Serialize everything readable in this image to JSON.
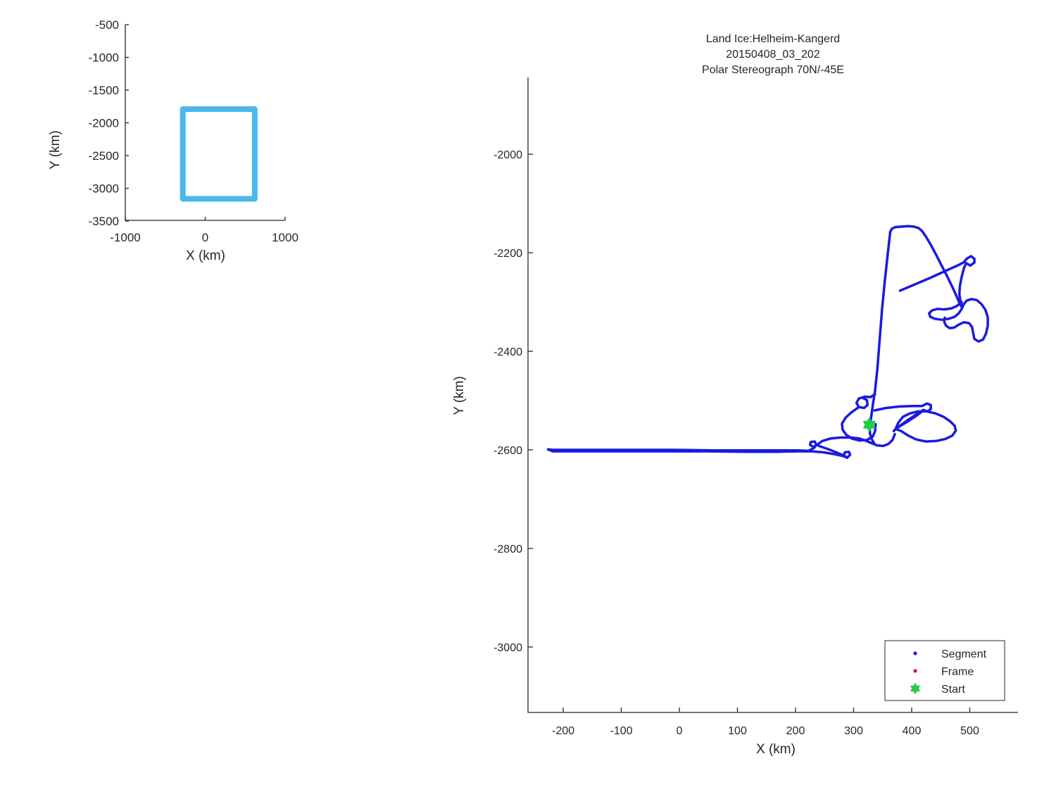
{
  "chart_data": [
    {
      "id": "overview_inset",
      "type": "line",
      "xlabel": "X (km)",
      "ylabel": "Y (km)",
      "xlim": [
        -1000,
        1000
      ],
      "ylim": [
        -3500,
        -500
      ],
      "xticks": [
        -1000,
        0,
        1000
      ],
      "yticks": [
        -500,
        -1000,
        -1500,
        -2000,
        -2500,
        -3000,
        -3500
      ],
      "grid": false,
      "series": [
        {
          "name": "coverage-box",
          "color": "#4DB8E8",
          "closed": true,
          "points": [
            [
              -280,
              -1790
            ],
            [
              620,
              -1790
            ],
            [
              620,
              -3160
            ],
            [
              -280,
              -3160
            ]
          ]
        }
      ]
    },
    {
      "id": "flight_track",
      "type": "scatter",
      "title_lines": [
        "Land Ice:Helheim-Kangerd",
        "20150408_03_202",
        "Polar Stereograph 70N/-45E"
      ],
      "xlabel": "X (km)",
      "ylabel": "Y (km)",
      "xlim": [
        -260,
        583
      ],
      "ylim": [
        -3134,
        -1844
      ],
      "xticks": [
        -200,
        -100,
        0,
        100,
        200,
        300,
        400,
        500
      ],
      "yticks": [
        -2000,
        -2200,
        -2400,
        -2600,
        -2800,
        -3000
      ],
      "grid": false,
      "track_color": "#1A1AE0",
      "axis_color": "#262626",
      "legend": {
        "position": "southeast",
        "entries": [
          {
            "label": "Segment",
            "marker": "dot",
            "color": "#1A1AE0"
          },
          {
            "label": "Frame",
            "marker": "dot",
            "color": "#E01020"
          },
          {
            "label": "Start",
            "marker": "star",
            "color": "#22CC44"
          }
        ]
      },
      "start_point": [
        327,
        -2549
      ],
      "segments": [
        [
          [
            -226,
            -2599
          ],
          [
            -218,
            -2600
          ],
          [
            -150,
            -2600
          ],
          [
            -80,
            -2600
          ],
          [
            -10,
            -2600
          ],
          [
            60,
            -2601
          ],
          [
            120,
            -2601
          ],
          [
            170,
            -2601
          ],
          [
            205,
            -2601
          ],
          [
            222,
            -2602
          ],
          [
            232,
            -2596
          ],
          [
            236,
            -2590
          ],
          [
            233,
            -2583
          ],
          [
            226,
            -2584
          ],
          [
            225,
            -2590
          ],
          [
            231,
            -2594
          ],
          [
            237,
            -2590
          ],
          [
            246,
            -2582
          ],
          [
            260,
            -2577
          ],
          [
            278,
            -2575
          ],
          [
            295,
            -2575
          ],
          [
            310,
            -2577
          ],
          [
            322,
            -2582
          ],
          [
            332,
            -2587
          ],
          [
            341,
            -2591
          ],
          [
            351,
            -2592
          ],
          [
            360,
            -2588
          ],
          [
            367,
            -2580
          ],
          [
            371,
            -2568
          ]
        ],
        [
          [
            -226,
            -2599
          ],
          [
            -218,
            -2603
          ],
          [
            -160,
            -2603
          ],
          [
            -90,
            -2603
          ],
          [
            -20,
            -2603
          ],
          [
            50,
            -2603
          ],
          [
            115,
            -2604
          ],
          [
            165,
            -2604
          ],
          [
            205,
            -2603
          ],
          [
            228,
            -2603
          ],
          [
            248,
            -2605
          ],
          [
            268,
            -2609
          ],
          [
            283,
            -2613
          ],
          [
            289,
            -2616
          ],
          [
            294,
            -2610
          ],
          [
            292,
            -2604
          ],
          [
            285,
            -2605
          ],
          [
            283,
            -2611
          ],
          [
            288,
            -2616
          ]
        ],
        [
          [
            240,
            -2592
          ],
          [
            255,
            -2598
          ],
          [
            270,
            -2605
          ],
          [
            282,
            -2611
          ],
          [
            287,
            -2614
          ]
        ],
        [
          [
            363,
            -2158
          ],
          [
            359,
            -2200
          ],
          [
            354,
            -2255
          ],
          [
            349,
            -2315
          ],
          [
            345,
            -2375
          ],
          [
            341,
            -2435
          ],
          [
            337,
            -2480
          ],
          [
            333,
            -2510
          ],
          [
            330,
            -2535
          ],
          [
            328,
            -2552
          ],
          [
            328,
            -2566
          ],
          [
            331,
            -2578
          ],
          [
            336,
            -2588
          ]
        ],
        [
          [
            363,
            -2158
          ],
          [
            366,
            -2151
          ],
          [
            372,
            -2148
          ],
          [
            382,
            -2147
          ],
          [
            394,
            -2146
          ],
          [
            404,
            -2147
          ],
          [
            412,
            -2150
          ],
          [
            418,
            -2156
          ],
          [
            425,
            -2168
          ],
          [
            433,
            -2184
          ],
          [
            442,
            -2204
          ],
          [
            452,
            -2227
          ],
          [
            462,
            -2250
          ],
          [
            471,
            -2272
          ],
          [
            478,
            -2290
          ],
          [
            483,
            -2304
          ],
          [
            486,
            -2310
          ]
        ],
        [
          [
            380,
            -2277
          ],
          [
            404,
            -2265
          ],
          [
            430,
            -2252
          ],
          [
            456,
            -2238
          ],
          [
            477,
            -2227
          ],
          [
            489,
            -2220
          ],
          [
            495,
            -2212
          ],
          [
            502,
            -2207
          ],
          [
            508,
            -2212
          ],
          [
            508,
            -2220
          ],
          [
            501,
            -2226
          ],
          [
            494,
            -2221
          ],
          [
            490,
            -2231
          ],
          [
            486,
            -2249
          ],
          [
            483,
            -2267
          ],
          [
            482,
            -2284
          ],
          [
            484,
            -2298
          ],
          [
            487,
            -2308
          ]
        ],
        [
          [
            486,
            -2300
          ],
          [
            478,
            -2308
          ],
          [
            468,
            -2313
          ],
          [
            456,
            -2315
          ],
          [
            444,
            -2314
          ],
          [
            435,
            -2317
          ],
          [
            430,
            -2323
          ],
          [
            432,
            -2330
          ],
          [
            440,
            -2334
          ],
          [
            452,
            -2336
          ],
          [
            464,
            -2334
          ],
          [
            474,
            -2330
          ],
          [
            481,
            -2323
          ],
          [
            486,
            -2314
          ],
          [
            490,
            -2304
          ],
          [
            495,
            -2297
          ],
          [
            503,
            -2294
          ],
          [
            512,
            -2296
          ],
          [
            520,
            -2304
          ],
          [
            527,
            -2316
          ],
          [
            531,
            -2331
          ],
          [
            531,
            -2348
          ],
          [
            528,
            -2364
          ],
          [
            523,
            -2376
          ],
          [
            515,
            -2380
          ],
          [
            508,
            -2375
          ],
          [
            506,
            -2364
          ],
          [
            504,
            -2351
          ],
          [
            499,
            -2343
          ],
          [
            490,
            -2341
          ],
          [
            481,
            -2346
          ],
          [
            473,
            -2352
          ],
          [
            465,
            -2353
          ],
          [
            459,
            -2348
          ],
          [
            456,
            -2340
          ],
          [
            457,
            -2332
          ]
        ],
        [
          [
            337,
            -2487
          ],
          [
            329,
            -2493
          ],
          [
            319,
            -2492
          ],
          [
            309,
            -2496
          ],
          [
            305,
            -2505
          ],
          [
            309,
            -2513
          ],
          [
            318,
            -2515
          ],
          [
            324,
            -2509
          ],
          [
            323,
            -2499
          ],
          [
            315,
            -2494
          ]
        ],
        [
          [
            307,
            -2515
          ],
          [
            296,
            -2524
          ],
          [
            286,
            -2535
          ],
          [
            280,
            -2547
          ],
          [
            281,
            -2559
          ],
          [
            287,
            -2569
          ],
          [
            297,
            -2577
          ],
          [
            310,
            -2581
          ],
          [
            323,
            -2580
          ],
          [
            333,
            -2573
          ],
          [
            337,
            -2562
          ],
          [
            338,
            -2548
          ]
        ],
        [
          [
            336,
            -2520
          ],
          [
            356,
            -2515
          ],
          [
            380,
            -2512
          ],
          [
            402,
            -2511
          ],
          [
            418,
            -2511
          ],
          [
            426,
            -2506
          ],
          [
            433,
            -2509
          ],
          [
            433,
            -2517
          ],
          [
            427,
            -2522
          ],
          [
            420,
            -2519
          ],
          [
            408,
            -2528
          ],
          [
            394,
            -2539
          ],
          [
            381,
            -2550
          ],
          [
            373,
            -2557
          ],
          [
            369,
            -2562
          ]
        ],
        [
          [
            371,
            -2559
          ],
          [
            381,
            -2551
          ],
          [
            395,
            -2541
          ],
          [
            409,
            -2530
          ],
          [
            419,
            -2521
          ]
        ],
        [
          [
            372,
            -2558
          ],
          [
            377,
            -2545
          ],
          [
            385,
            -2533
          ],
          [
            397,
            -2526
          ],
          [
            411,
            -2522
          ],
          [
            426,
            -2522
          ],
          [
            441,
            -2526
          ],
          [
            455,
            -2533
          ],
          [
            466,
            -2542
          ],
          [
            474,
            -2551
          ],
          [
            476,
            -2561
          ],
          [
            470,
            -2571
          ],
          [
            458,
            -2578
          ],
          [
            442,
            -2582
          ],
          [
            424,
            -2583
          ],
          [
            408,
            -2579
          ],
          [
            394,
            -2571
          ],
          [
            382,
            -2562
          ],
          [
            373,
            -2558
          ]
        ]
      ]
    }
  ]
}
